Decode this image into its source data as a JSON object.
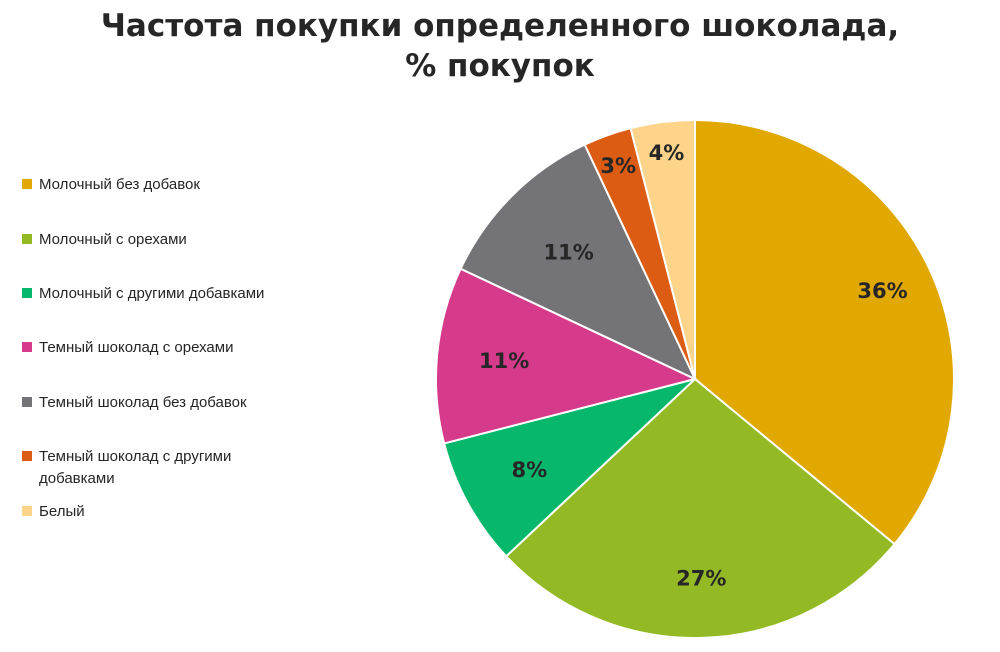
{
  "chart_data": {
    "type": "pie",
    "title_line1": "Частота покупки определенного шоколада,",
    "title_line2": "% покупок",
    "categories": [
      "Молочный без добавок",
      "Молочный с орехами",
      "Молочный с другими добавками",
      "Темный шоколад с орехами",
      "Темный шоколад без добавок",
      "Темный шоколад с другими добавками",
      "Белый"
    ],
    "values": [
      36,
      27,
      8,
      11,
      11,
      3,
      4
    ],
    "labels": [
      "36%",
      "27%",
      "8%",
      "11%",
      "11%",
      "3%",
      "4%"
    ],
    "colors": [
      "#E0A800",
      "#93B925",
      "#07B76C",
      "#D63A8B",
      "#737378",
      "#DC5C14",
      "#FDD48A"
    ],
    "legend_position": "left"
  }
}
